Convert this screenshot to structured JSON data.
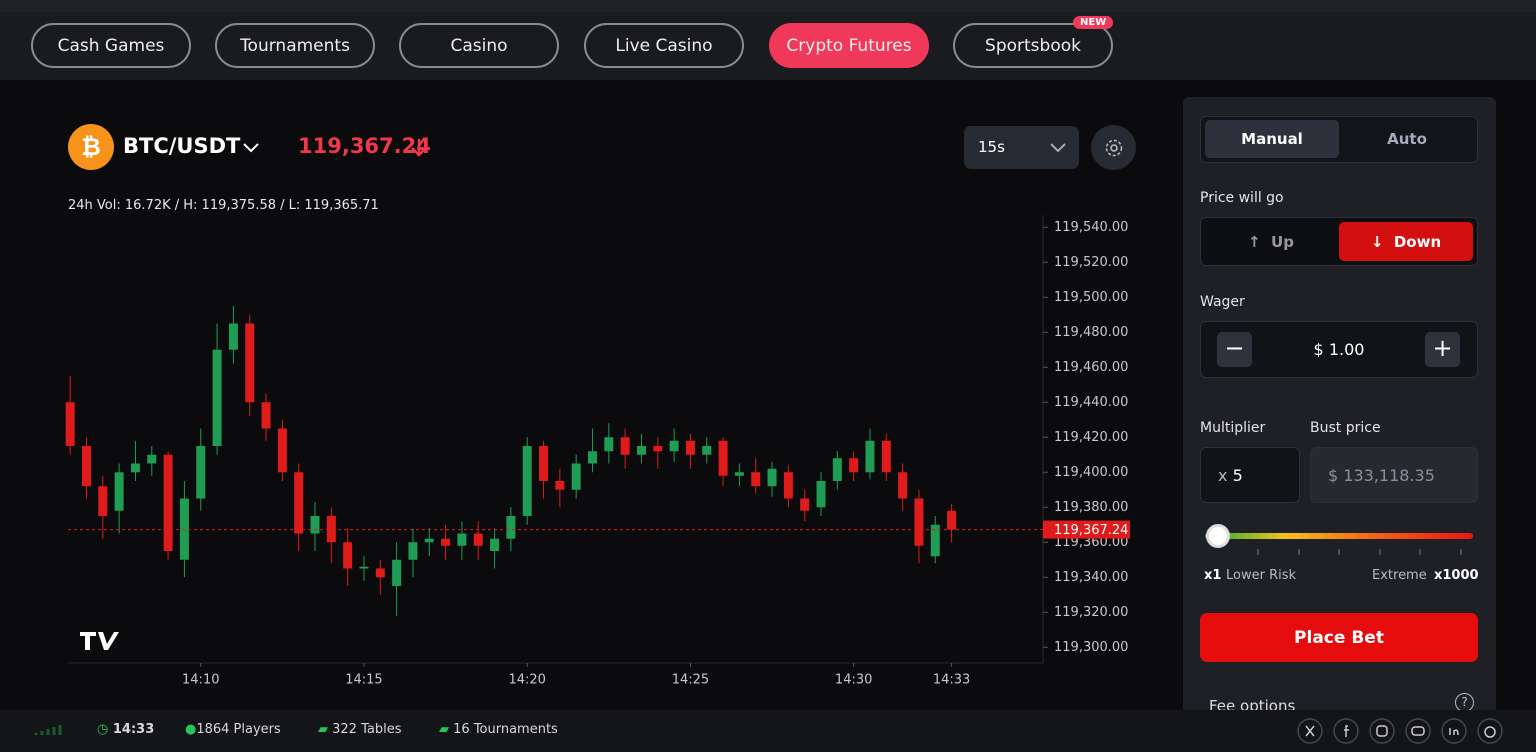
{
  "nav": {
    "tabs": [
      "Cash Games",
      "Tournaments",
      "Casino",
      "Live Casino",
      "Crypto Futures",
      "Sportsbook"
    ],
    "badge": "NEW"
  },
  "header": {
    "symbol": "BTC/USDT",
    "stats": "24h Vol: 16.72K / H: 119,375.58 / L: 119,365.71",
    "interval": "15s"
  },
  "chart_data": {
    "type": "candlestick",
    "x": [
      "14:06:00",
      "14:06:30",
      "14:07:00",
      "14:07:30",
      "14:08:00",
      "14:08:30",
      "14:09:00",
      "14:09:30",
      "14:10:00",
      "14:10:30",
      "14:11:00",
      "14:11:30",
      "14:12:00",
      "14:12:30",
      "14:13:00",
      "14:13:30",
      "14:14:00",
      "14:14:30",
      "14:15:00",
      "14:15:30",
      "14:16:00",
      "14:16:30",
      "14:17:00",
      "14:17:30",
      "14:18:00",
      "14:18:30",
      "14:19:00",
      "14:19:30",
      "14:20:00",
      "14:20:30",
      "14:21:00",
      "14:21:30",
      "14:22:00",
      "14:22:30",
      "14:23:00",
      "14:23:30",
      "14:24:00",
      "14:24:30",
      "14:25:00",
      "14:25:30",
      "14:26:00",
      "14:26:30",
      "14:27:00",
      "14:27:30",
      "14:28:00",
      "14:28:30",
      "14:29:00",
      "14:29:30",
      "14:30:00",
      "14:30:30",
      "14:31:00",
      "14:31:30",
      "14:32:00",
      "14:32:30",
      "14:33:00"
    ],
    "open": [
      119440,
      119415,
      119392,
      119378,
      119400,
      119405,
      119410,
      119350,
      119385,
      119415,
      119470,
      119485,
      119440,
      119425,
      119400,
      119365,
      119375,
      119360,
      119345,
      119345,
      119335,
      119350,
      119360,
      119362,
      119358,
      119365,
      119355,
      119362,
      119375,
      119415,
      119395,
      119390,
      119405,
      119412,
      119420,
      119410,
      119415,
      119412,
      119418,
      119410,
      119418,
      119398,
      119400,
      119392,
      119400,
      119385,
      119380,
      119395,
      119408,
      119400,
      119418,
      119400,
      119385,
      119352,
      119378
    ],
    "high": [
      119455,
      119420,
      119398,
      119405,
      119418,
      119415,
      119412,
      119395,
      119425,
      119485,
      119495,
      119490,
      119445,
      119430,
      119405,
      119383,
      119380,
      119368,
      119352,
      119350,
      119360,
      119368,
      119368,
      119370,
      119372,
      119372,
      119368,
      119380,
      119420,
      119418,
      119402,
      119410,
      119425,
      119428,
      119425,
      119422,
      119420,
      119425,
      119422,
      119420,
      119420,
      119405,
      119408,
      119406,
      119404,
      119390,
      119400,
      119412,
      119412,
      119425,
      119422,
      119405,
      119390,
      119375,
      119382
    ],
    "low": [
      119410,
      119385,
      119362,
      119365,
      119395,
      119398,
      119350,
      119340,
      119378,
      119410,
      119462,
      119432,
      119418,
      119395,
      119355,
      119355,
      119348,
      119335,
      119338,
      119330,
      119318,
      119340,
      119352,
      119350,
      119350,
      119350,
      119345,
      119355,
      119370,
      119385,
      119380,
      119385,
      119400,
      119405,
      119402,
      119405,
      119402,
      119406,
      119402,
      119405,
      119392,
      119392,
      119388,
      119386,
      119380,
      119372,
      119375,
      119390,
      119395,
      119396,
      119395,
      119378,
      119348,
      119348,
      119360
    ],
    "close": [
      119415,
      119392,
      119375,
      119400,
      119405,
      119410,
      119355,
      119385,
      119415,
      119470,
      119485,
      119440,
      119425,
      119400,
      119365,
      119375,
      119360,
      119345,
      119346,
      119340,
      119350,
      119360,
      119362,
      119358,
      119365,
      119358,
      119362,
      119375,
      119415,
      119395,
      119390,
      119405,
      119412,
      119420,
      119410,
      119415,
      119412,
      119418,
      119410,
      119415,
      119398,
      119400,
      119392,
      119402,
      119385,
      119378,
      119395,
      119408,
      119400,
      119418,
      119400,
      119385,
      119358,
      119370,
      119367.24
    ],
    "up_color": "#1f9d55",
    "down_color": "#e01b1b",
    "xlim": [
      "14:05:56",
      "14:35:48"
    ],
    "xticks": [
      {
        "value": "14:10:00",
        "label": "14:10"
      },
      {
        "value": "14:15:00",
        "label": "14:15"
      },
      {
        "value": "14:20:00",
        "label": "14:20"
      },
      {
        "value": "14:25:00",
        "label": "14:25"
      },
      {
        "value": "14:30:00",
        "label": "14:30"
      },
      {
        "value": "14:33:00",
        "label": "14:33"
      }
    ],
    "ylim": [
      119291,
      119547
    ],
    "yticks": [
      {
        "value": 119300,
        "label": "119,300.00"
      },
      {
        "value": 119320,
        "label": "119,320.00"
      },
      {
        "value": 119340,
        "label": "119,340.00"
      },
      {
        "value": 119360,
        "label": "119,360.00"
      },
      {
        "value": 119380,
        "label": "119,380.00"
      },
      {
        "value": 119400,
        "label": "119,400.00"
      },
      {
        "value": 119420,
        "label": "119,420.00"
      },
      {
        "value": 119440,
        "label": "119,440.00"
      },
      {
        "value": 119460,
        "label": "119,460.00"
      },
      {
        "value": 119480,
        "label": "119,480.00"
      },
      {
        "value": 119500,
        "label": "119,500.00"
      },
      {
        "value": 119520,
        "label": "119,520.00"
      },
      {
        "value": 119540,
        "label": "119,540.00"
      }
    ],
    "price_line": {
      "value": 119367.24,
      "label": "119,367.24"
    }
  },
  "panel": {
    "modes": [
      "Manual",
      "Auto"
    ],
    "direction_label": "Price will go",
    "up": "Up",
    "down": "Down",
    "wager_label": "Wager",
    "wager": "$ 1.00",
    "multiplier_label": "Multiplier",
    "bust_label": "Bust price",
    "multiplier_prefix": "x",
    "multiplier": "5",
    "bust": "$ 133,118.35",
    "risk_min": "x1",
    "risk_min_label": "Lower Risk",
    "risk_max_label": "Extreme",
    "risk_max": "x1000",
    "place_bet": "Place Bet",
    "fee": "Fee options"
  },
  "footer": {
    "time": "14:33",
    "players": "1864 Players",
    "tables": "322 Tables",
    "tournaments": "16 Tournaments"
  }
}
